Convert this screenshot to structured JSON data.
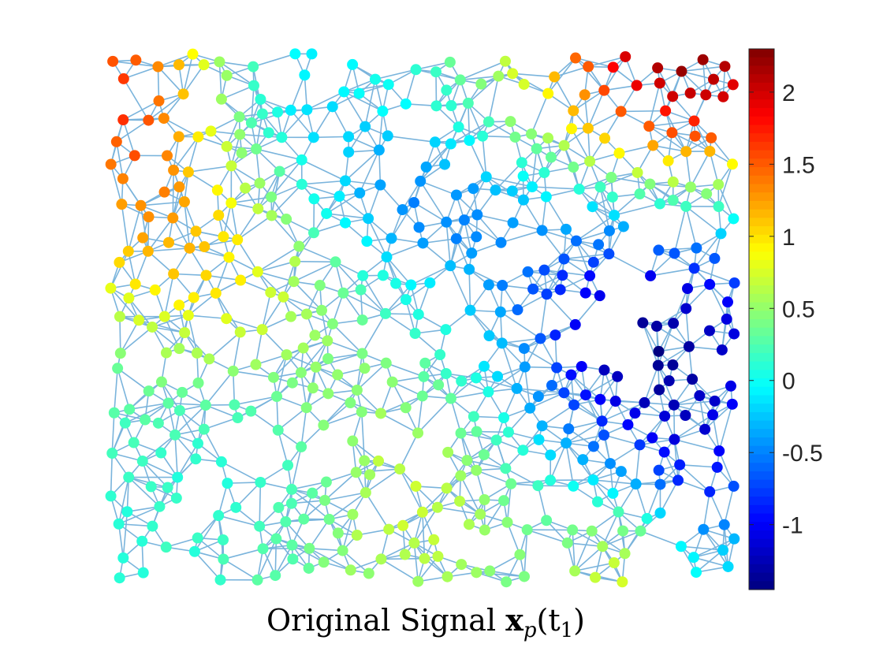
{
  "chart_data": {
    "type": "scatter",
    "title": "Original Signal x_p(t_1)",
    "caption": {
      "prefix": "Original Signal ",
      "bold_symbol": "x",
      "subscript": "p",
      "args_open": "(t",
      "args_sub": "1",
      "args_close": ")"
    },
    "colorbar": {
      "colormap": "jet",
      "clim": [
        -1.45,
        2.3
      ],
      "ticks": [
        2,
        1.5,
        1,
        0.5,
        0,
        -0.5,
        -1
      ],
      "tick_labels": [
        "2",
        "1.5",
        "1",
        "0.5",
        "0",
        "-0.5",
        "-1"
      ]
    },
    "edge_color": "#7ab4dc",
    "grid": false,
    "seed": 1207,
    "n_nodes": 560
  }
}
